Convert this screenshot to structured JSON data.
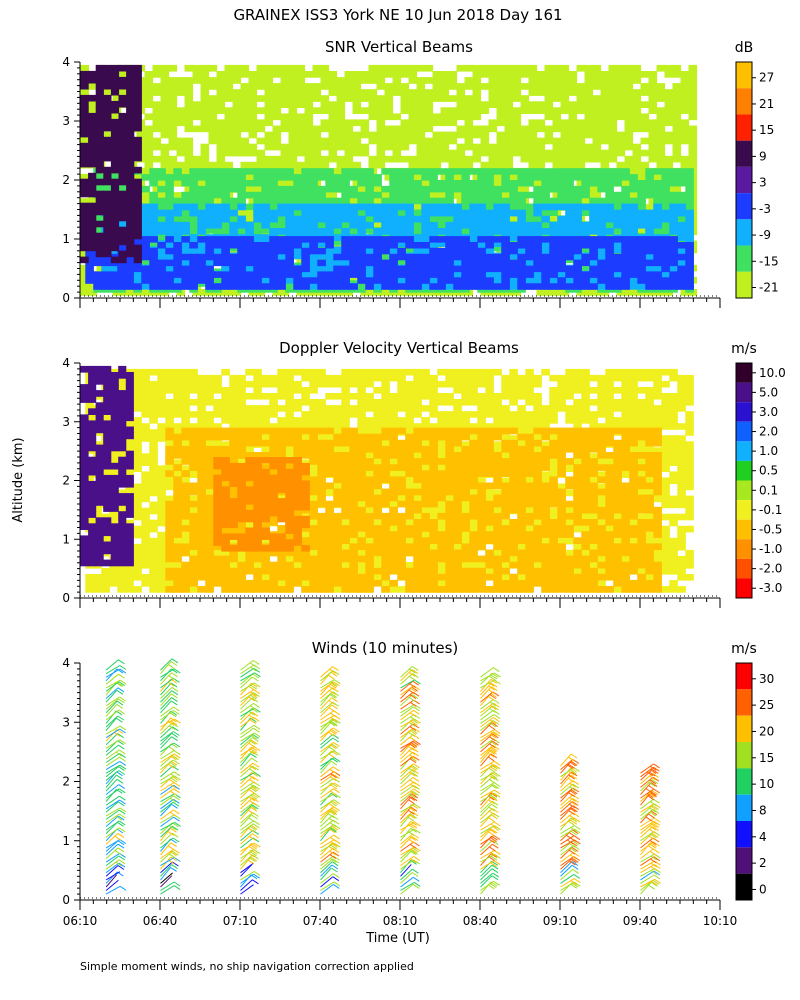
{
  "header": {
    "title": "GRAINEX ISS3 York NE  10 Jun 2018 Day 161"
  },
  "footer": {
    "note": "Simple moment winds, no ship navigation correction applied"
  },
  "chart_data": [
    {
      "type": "heatmap",
      "title": "SNR Vertical Beams",
      "y_ticks": [
        "0",
        "1",
        "2",
        "3",
        "4"
      ],
      "ylim": [
        0,
        4
      ],
      "colorbar": {
        "unit": "dB",
        "levels": [
          "27",
          "21",
          "15",
          "9",
          "3",
          "-3",
          "-9",
          "-15",
          "-21"
        ],
        "colors": [
          "#ffc000",
          "#ff8000",
          "#ff2000",
          "#3a0a4e",
          "#5a1aa0",
          "#1c3cff",
          "#10b0ff",
          "#40e060",
          "#c0f020"
        ]
      },
      "layers": [
        {
          "z": -21,
          "t": [
            6.17,
            10.02
          ],
          "alt": [
            0.05,
            3.95
          ]
        },
        {
          "z": -15,
          "t": [
            6.25,
            10.0
          ],
          "alt": [
            0.1,
            2.2
          ]
        },
        {
          "z": -9,
          "t": [
            6.3,
            10.0
          ],
          "alt": [
            0.15,
            1.6
          ]
        },
        {
          "z": -3,
          "t": [
            6.2,
            10.0
          ],
          "alt": [
            0.15,
            1.05
          ]
        },
        {
          "z": 9,
          "t": [
            6.17,
            6.55
          ],
          "alt": [
            0.6,
            3.95
          ]
        }
      ]
    },
    {
      "type": "heatmap",
      "title": "Doppler Velocity Vertical Beams",
      "y_ticks": [
        "0",
        "1",
        "2",
        "3",
        "4"
      ],
      "ylim": [
        0,
        4
      ],
      "colorbar": {
        "unit": "m/s",
        "levels": [
          "10.0",
          "5.0",
          "3.0",
          "2.0",
          "1.0",
          "0.5",
          "0.1",
          "-0.1",
          "-0.5",
          "-1.0",
          "-2.0",
          "-3.0"
        ],
        "colors": [
          "#30002a",
          "#4a108a",
          "#2a10d0",
          "#1060ff",
          "#10b0ff",
          "#20d020",
          "#a8e820",
          "#f0f020",
          "#ffc000",
          "#ff9000",
          "#ff5000",
          "#ff0000"
        ]
      },
      "layers": [
        {
          "z": -0.1,
          "t": [
            6.2,
            10.0
          ],
          "alt": [
            0.1,
            3.9
          ]
        },
        {
          "z": -0.5,
          "t": [
            6.7,
            9.8
          ],
          "alt": [
            0.1,
            2.9
          ]
        },
        {
          "z": -1.0,
          "t": [
            7.0,
            7.6
          ],
          "alt": [
            0.8,
            2.4
          ]
        },
        {
          "z": 5.0,
          "t": [
            6.17,
            6.5
          ],
          "alt": [
            0.55,
            3.95
          ]
        }
      ]
    },
    {
      "type": "scatter",
      "title": "Winds (10 minutes)",
      "x_ticks": [
        "06:10",
        "06:40",
        "07:10",
        "07:40",
        "08:10",
        "08:40",
        "09:10",
        "09:40",
        "10:10"
      ],
      "y_ticks": [
        "0",
        "1",
        "2",
        "3",
        "4"
      ],
      "xlabel": "Time (UT)",
      "ylabel": "Altitude (km)",
      "xlim": [
        "06:10",
        "10:10"
      ],
      "ylim": [
        0,
        4
      ],
      "colorbar": {
        "unit": "m/s",
        "levels": [
          "30",
          "25",
          "20",
          "15",
          "10",
          "8",
          "4",
          "2",
          "0"
        ],
        "colors": [
          "#ff0000",
          "#ff6000",
          "#ffc000",
          "#a0e020",
          "#20d060",
          "#10a0ff",
          "#1010ff",
          "#50107a",
          "#000000"
        ]
      },
      "series": [
        {
          "t": 6.33,
          "alt": [
            0.1,
            3.9
          ],
          "speed": 12
        },
        {
          "t": 6.67,
          "alt": [
            0.1,
            3.9
          ],
          "speed": 14
        },
        {
          "t": 7.17,
          "alt": [
            0.1,
            3.9
          ],
          "speed": 16
        },
        {
          "t": 7.67,
          "alt": [
            0.1,
            3.8
          ],
          "speed": 17
        },
        {
          "t": 8.17,
          "alt": [
            0.1,
            3.8
          ],
          "speed": 18
        },
        {
          "t": 8.67,
          "alt": [
            0.1,
            3.8
          ],
          "speed": 19
        },
        {
          "t": 9.17,
          "alt": [
            0.1,
            2.3
          ],
          "speed": 21
        },
        {
          "t": 9.67,
          "alt": [
            0.1,
            2.2
          ],
          "speed": 22
        }
      ]
    }
  ]
}
